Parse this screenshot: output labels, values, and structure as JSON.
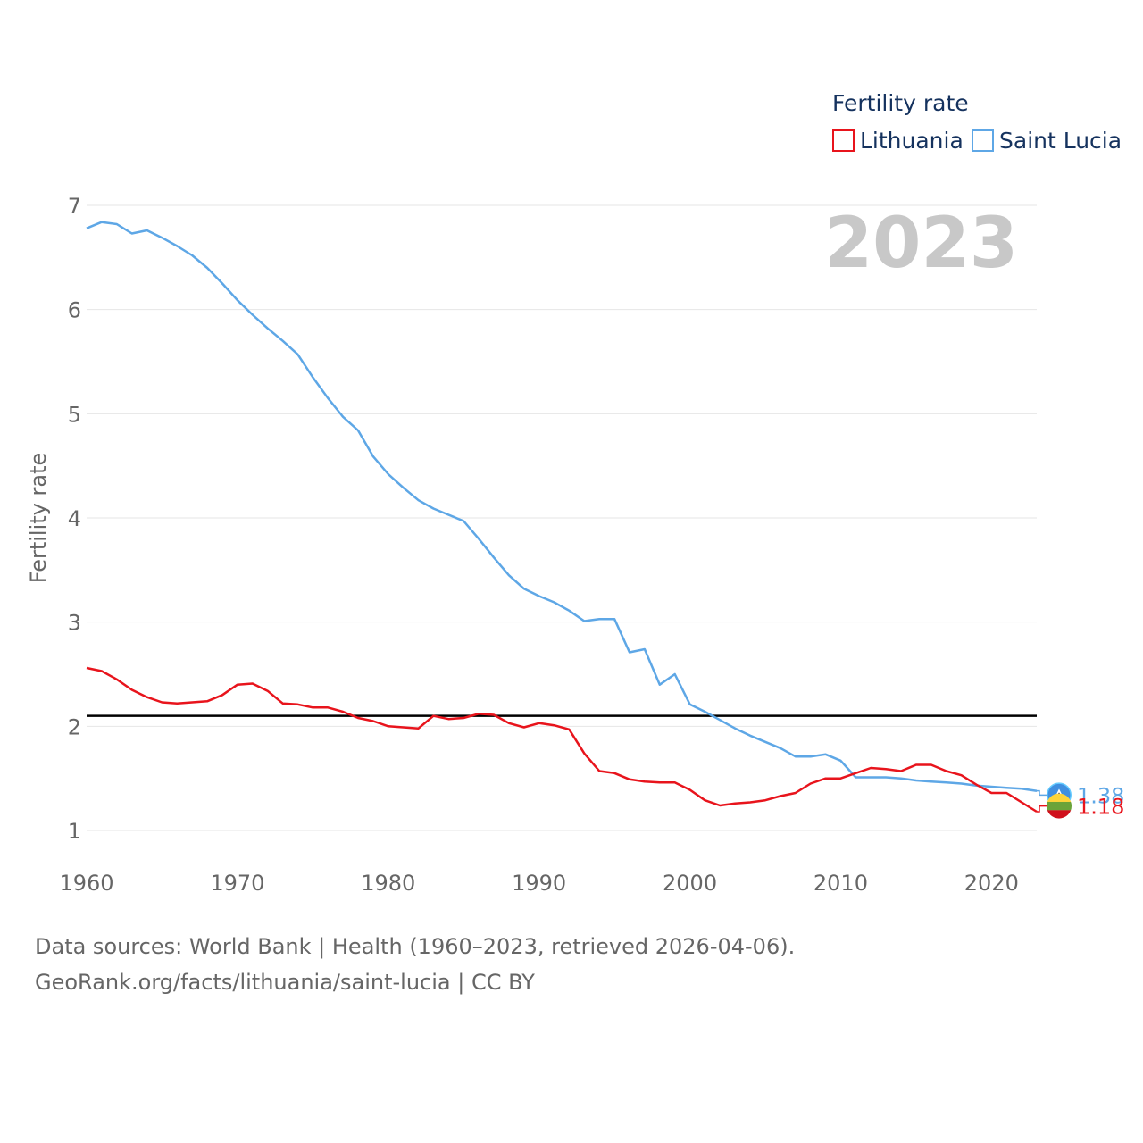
{
  "chart_data": {
    "type": "line",
    "legend_title": "Fertility rate",
    "ylabel": "Fertility rate",
    "year_label": "2023",
    "xlim": [
      1960,
      2023
    ],
    "ylim": [
      0.9,
      7
    ],
    "x_ticks": [
      1960,
      1970,
      1980,
      1990,
      2000,
      2010,
      2020
    ],
    "y_ticks": [
      1,
      2,
      3,
      4,
      5,
      6,
      7
    ],
    "reference_line": 2.1,
    "x": [
      1960,
      1961,
      1962,
      1963,
      1964,
      1965,
      1966,
      1967,
      1968,
      1969,
      1970,
      1971,
      1972,
      1973,
      1974,
      1975,
      1976,
      1977,
      1978,
      1979,
      1980,
      1981,
      1982,
      1983,
      1984,
      1985,
      1986,
      1987,
      1988,
      1989,
      1990,
      1991,
      1992,
      1993,
      1994,
      1995,
      1996,
      1997,
      1998,
      1999,
      2000,
      2001,
      2002,
      2003,
      2004,
      2005,
      2006,
      2007,
      2008,
      2009,
      2010,
      2011,
      2012,
      2013,
      2014,
      2015,
      2016,
      2017,
      2018,
      2019,
      2020,
      2021,
      2022,
      2023
    ],
    "series": [
      {
        "name": "Lithuania",
        "color": "#e8141c",
        "end_label": "1.18",
        "values": [
          2.56,
          2.53,
          2.45,
          2.35,
          2.28,
          2.23,
          2.22,
          2.23,
          2.24,
          2.3,
          2.4,
          2.41,
          2.34,
          2.22,
          2.21,
          2.18,
          2.18,
          2.14,
          2.08,
          2.05,
          2.0,
          1.99,
          1.98,
          2.1,
          2.07,
          2.08,
          2.12,
          2.11,
          2.03,
          1.99,
          2.03,
          2.01,
          1.97,
          1.74,
          1.57,
          1.55,
          1.49,
          1.47,
          1.46,
          1.46,
          1.39,
          1.29,
          1.24,
          1.26,
          1.27,
          1.29,
          1.33,
          1.36,
          1.45,
          1.5,
          1.5,
          1.55,
          1.6,
          1.59,
          1.57,
          1.63,
          1.63,
          1.57,
          1.53,
          1.44,
          1.36,
          1.36,
          1.27,
          1.18
        ]
      },
      {
        "name": "Saint Lucia",
        "color": "#5ea7e6",
        "end_label": "1.38",
        "values": [
          6.78,
          6.84,
          6.82,
          6.73,
          6.76,
          6.69,
          6.61,
          6.52,
          6.4,
          6.25,
          6.09,
          5.95,
          5.82,
          5.7,
          5.57,
          5.35,
          5.15,
          4.97,
          4.84,
          4.59,
          4.42,
          4.29,
          4.17,
          4.09,
          4.03,
          3.97,
          3.8,
          3.62,
          3.45,
          3.32,
          3.25,
          3.19,
          3.11,
          3.01,
          3.03,
          3.03,
          2.71,
          2.74,
          2.4,
          2.5,
          2.21,
          2.14,
          2.06,
          1.98,
          1.91,
          1.85,
          1.79,
          1.71,
          1.71,
          1.73,
          1.67,
          1.51,
          1.51,
          1.51,
          1.5,
          1.48,
          1.47,
          1.46,
          1.45,
          1.43,
          1.42,
          1.41,
          1.4,
          1.38
        ]
      }
    ]
  },
  "footer": {
    "line1": "Data sources: World Bank | Health (1960–2023, retrieved 2026-04-06).",
    "line2": "GeoRank.org/facts/lithuania/saint-lucia | CC BY"
  }
}
